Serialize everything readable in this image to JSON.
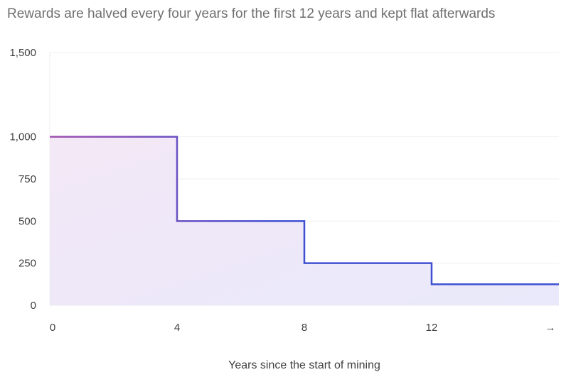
{
  "chart_data": {
    "type": "line",
    "subtitle": "Rewards are halved every four years for the first 12 years and kept flat afterwards",
    "xlabel": "Years since the start of mining",
    "ylabel": "",
    "x_tick_labels": [
      "0",
      "4",
      "8",
      "12",
      "→"
    ],
    "x_tick_values": [
      0,
      4,
      8,
      12,
      16
    ],
    "xlim": [
      0,
      16
    ],
    "y_tick_labels": [
      "0",
      "250",
      "500",
      "750",
      "1,000",
      "1,500"
    ],
    "y_tick_values": [
      0,
      250,
      500,
      750,
      1000,
      1500
    ],
    "ylim": [
      0,
      1500
    ],
    "grid": true,
    "series": [
      {
        "step": "post",
        "x": [
          0,
          4,
          8,
          12,
          16
        ],
        "y": [
          1000,
          500,
          250,
          125,
          125
        ]
      }
    ],
    "colors": {
      "line_start": "#a04fb0",
      "line_end": "#3e4fd1",
      "fill": "#ece8fb",
      "grid": "#efefef",
      "tick_text": "#3f3f3f",
      "subtitle_text": "#6f6f6f"
    }
  }
}
